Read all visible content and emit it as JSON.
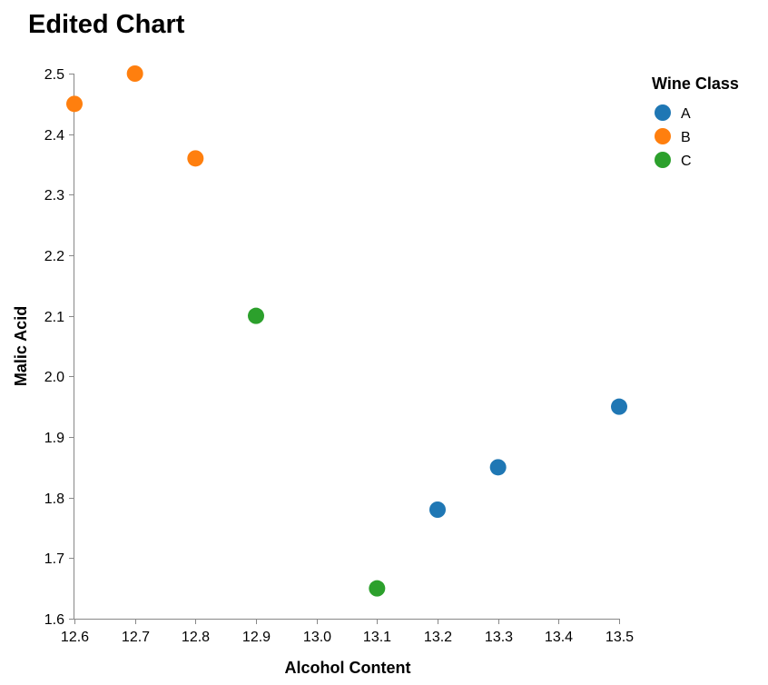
{
  "chart_data": {
    "type": "scatter",
    "title": "Edited Chart",
    "xlabel": "Alcohol Content",
    "ylabel": "Malic Acid",
    "xlim": [
      12.6,
      13.5
    ],
    "ylim": [
      1.6,
      2.5
    ],
    "x_ticks": [
      "12.6",
      "12.7",
      "12.8",
      "12.9",
      "13.0",
      "13.1",
      "13.2",
      "13.3",
      "13.4",
      "13.5"
    ],
    "y_ticks": [
      "1.6",
      "1.7",
      "1.8",
      "1.9",
      "2.0",
      "2.1",
      "2.2",
      "2.3",
      "2.4",
      "2.5"
    ],
    "grid": false,
    "legend": {
      "title": "Wine Class",
      "position": "top-right"
    },
    "series": [
      {
        "name": "A",
        "color": "#1f77b4",
        "points": [
          {
            "x": 13.2,
            "y": 1.78
          },
          {
            "x": 13.3,
            "y": 1.85
          },
          {
            "x": 13.5,
            "y": 1.95
          }
        ]
      },
      {
        "name": "B",
        "color": "#ff7f0e",
        "points": [
          {
            "x": 12.6,
            "y": 2.45
          },
          {
            "x": 12.7,
            "y": 2.5
          },
          {
            "x": 12.8,
            "y": 2.36
          }
        ]
      },
      {
        "name": "C",
        "color": "#2ca02c",
        "points": [
          {
            "x": 12.9,
            "y": 2.1
          },
          {
            "x": 13.1,
            "y": 1.65
          }
        ]
      }
    ]
  }
}
